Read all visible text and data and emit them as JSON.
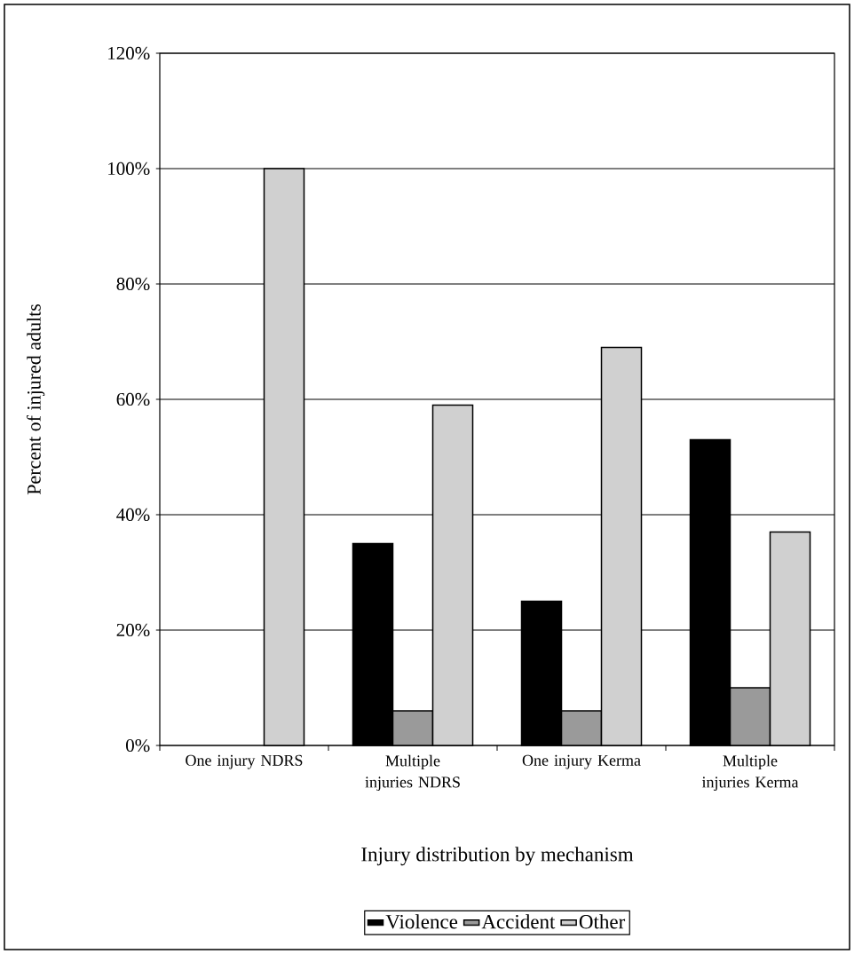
{
  "chart_data": {
    "type": "bar",
    "xlabel": "Injury distribution by mechanism",
    "ylabel": "Percent of injured adults",
    "categories": [
      "One injury NDRS",
      "Multiple injuries NDRS",
      "One injury Kerma",
      "Multiple injuries Kerma"
    ],
    "series": [
      {
        "name": "Violence",
        "color": "#000000",
        "values": [
          null,
          35,
          25,
          53
        ]
      },
      {
        "name": "Accident",
        "color": "#9a9a9a",
        "values": [
          null,
          6,
          6,
          10
        ]
      },
      {
        "name": "Other",
        "color": "#d0d0d0",
        "values": [
          100,
          59,
          69,
          37
        ]
      }
    ],
    "ylim": [
      0,
      120
    ],
    "yticks": [
      {
        "value": 0,
        "label": "0%"
      },
      {
        "value": 20,
        "label": "20%"
      },
      {
        "value": 40,
        "label": "40%"
      },
      {
        "value": 60,
        "label": "60%"
      },
      {
        "value": 80,
        "label": "80%"
      },
      {
        "value": 100,
        "label": "100%"
      },
      {
        "value": 120,
        "label": "120%"
      }
    ],
    "grid": "y",
    "legend": "bottom"
  }
}
